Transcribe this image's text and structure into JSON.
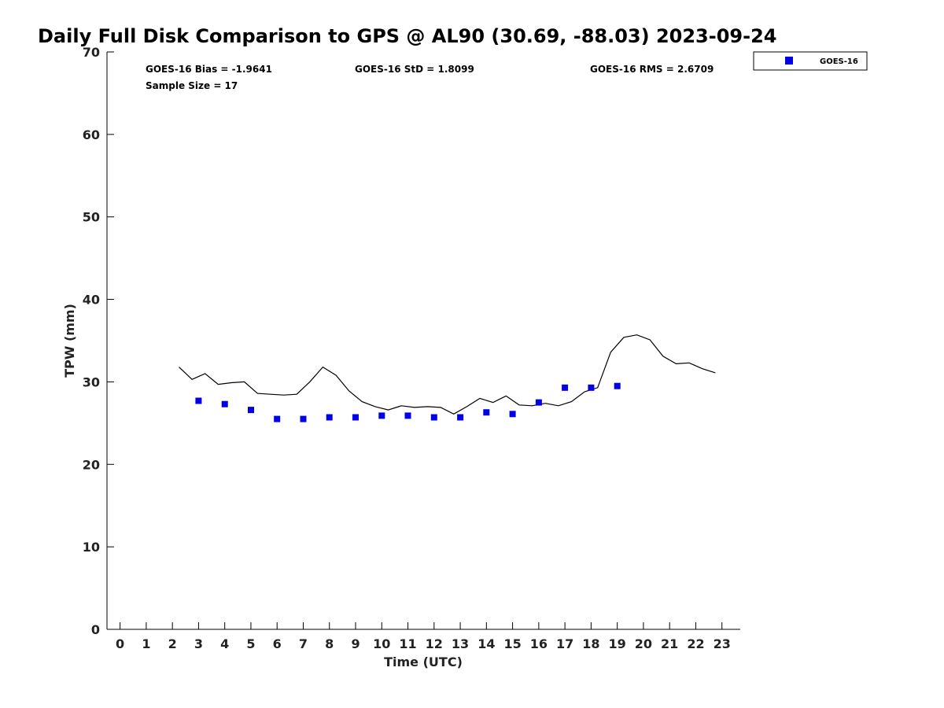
{
  "chart_data": {
    "type": "scatter",
    "title": "Daily Full Disk Comparison to GPS @ AL90 (30.69, -88.03) 2023-09-24",
    "xlabel": "Time (UTC)",
    "ylabel": "TPW (mm)",
    "xlim": [
      -0.5,
      23.7
    ],
    "ylim": [
      0,
      70
    ],
    "xticks": [
      0,
      1,
      2,
      3,
      4,
      5,
      6,
      7,
      8,
      9,
      10,
      11,
      12,
      13,
      14,
      15,
      16,
      17,
      18,
      19,
      20,
      21,
      22,
      23
    ],
    "yticks": [
      0,
      10,
      20,
      30,
      40,
      50,
      60,
      70
    ],
    "grid": false,
    "legend_position": "top-right",
    "stats": {
      "bias": "GOES-16 Bias = -1.9641",
      "std": "GOES-16 StD = 1.8099",
      "rms": "GOES-16 RMS = 2.6709",
      "sample": "Sample Size = 17"
    },
    "series": [
      {
        "name": "GOES-16",
        "kind": "scatter",
        "marker": "square",
        "color": "#0000e6",
        "x": [
          3,
          4,
          5,
          6,
          7,
          8,
          9,
          10,
          11,
          12,
          13,
          14,
          15,
          16,
          17,
          18,
          19
        ],
        "y": [
          27.7,
          27.3,
          26.6,
          25.5,
          25.5,
          25.7,
          25.7,
          25.9,
          25.9,
          25.7,
          25.7,
          26.3,
          26.1,
          27.5,
          29.3,
          29.3,
          29.5
        ]
      },
      {
        "kind": "line",
        "color": "#000000",
        "x": [
          2.25,
          2.75,
          3.25,
          3.75,
          4.25,
          4.75,
          5.25,
          5.75,
          6.25,
          6.75,
          7.25,
          7.75,
          8.25,
          8.75,
          9.25,
          9.75,
          10.25,
          10.75,
          11.25,
          11.75,
          12.25,
          12.75,
          13.25,
          13.75,
          14.25,
          14.75,
          15.25,
          15.75,
          16.25,
          16.75,
          17.25,
          17.75,
          18.25,
          18.75,
          19.25,
          19.75,
          20.25,
          20.75,
          21.25,
          21.75,
          22.25,
          22.75
        ],
        "y": [
          31.8,
          30.3,
          31.0,
          29.7,
          29.9,
          30.0,
          28.6,
          28.5,
          28.4,
          28.5,
          30.0,
          31.8,
          30.8,
          28.9,
          27.6,
          27.0,
          26.6,
          27.1,
          26.9,
          27.0,
          26.9,
          26.1,
          27.0,
          28.0,
          27.5,
          28.3,
          27.2,
          27.1,
          27.4,
          27.1,
          27.6,
          28.8,
          29.3,
          33.6,
          35.4,
          35.7,
          35.1,
          33.1,
          32.2,
          32.3,
          31.6,
          31.1
        ]
      }
    ]
  }
}
